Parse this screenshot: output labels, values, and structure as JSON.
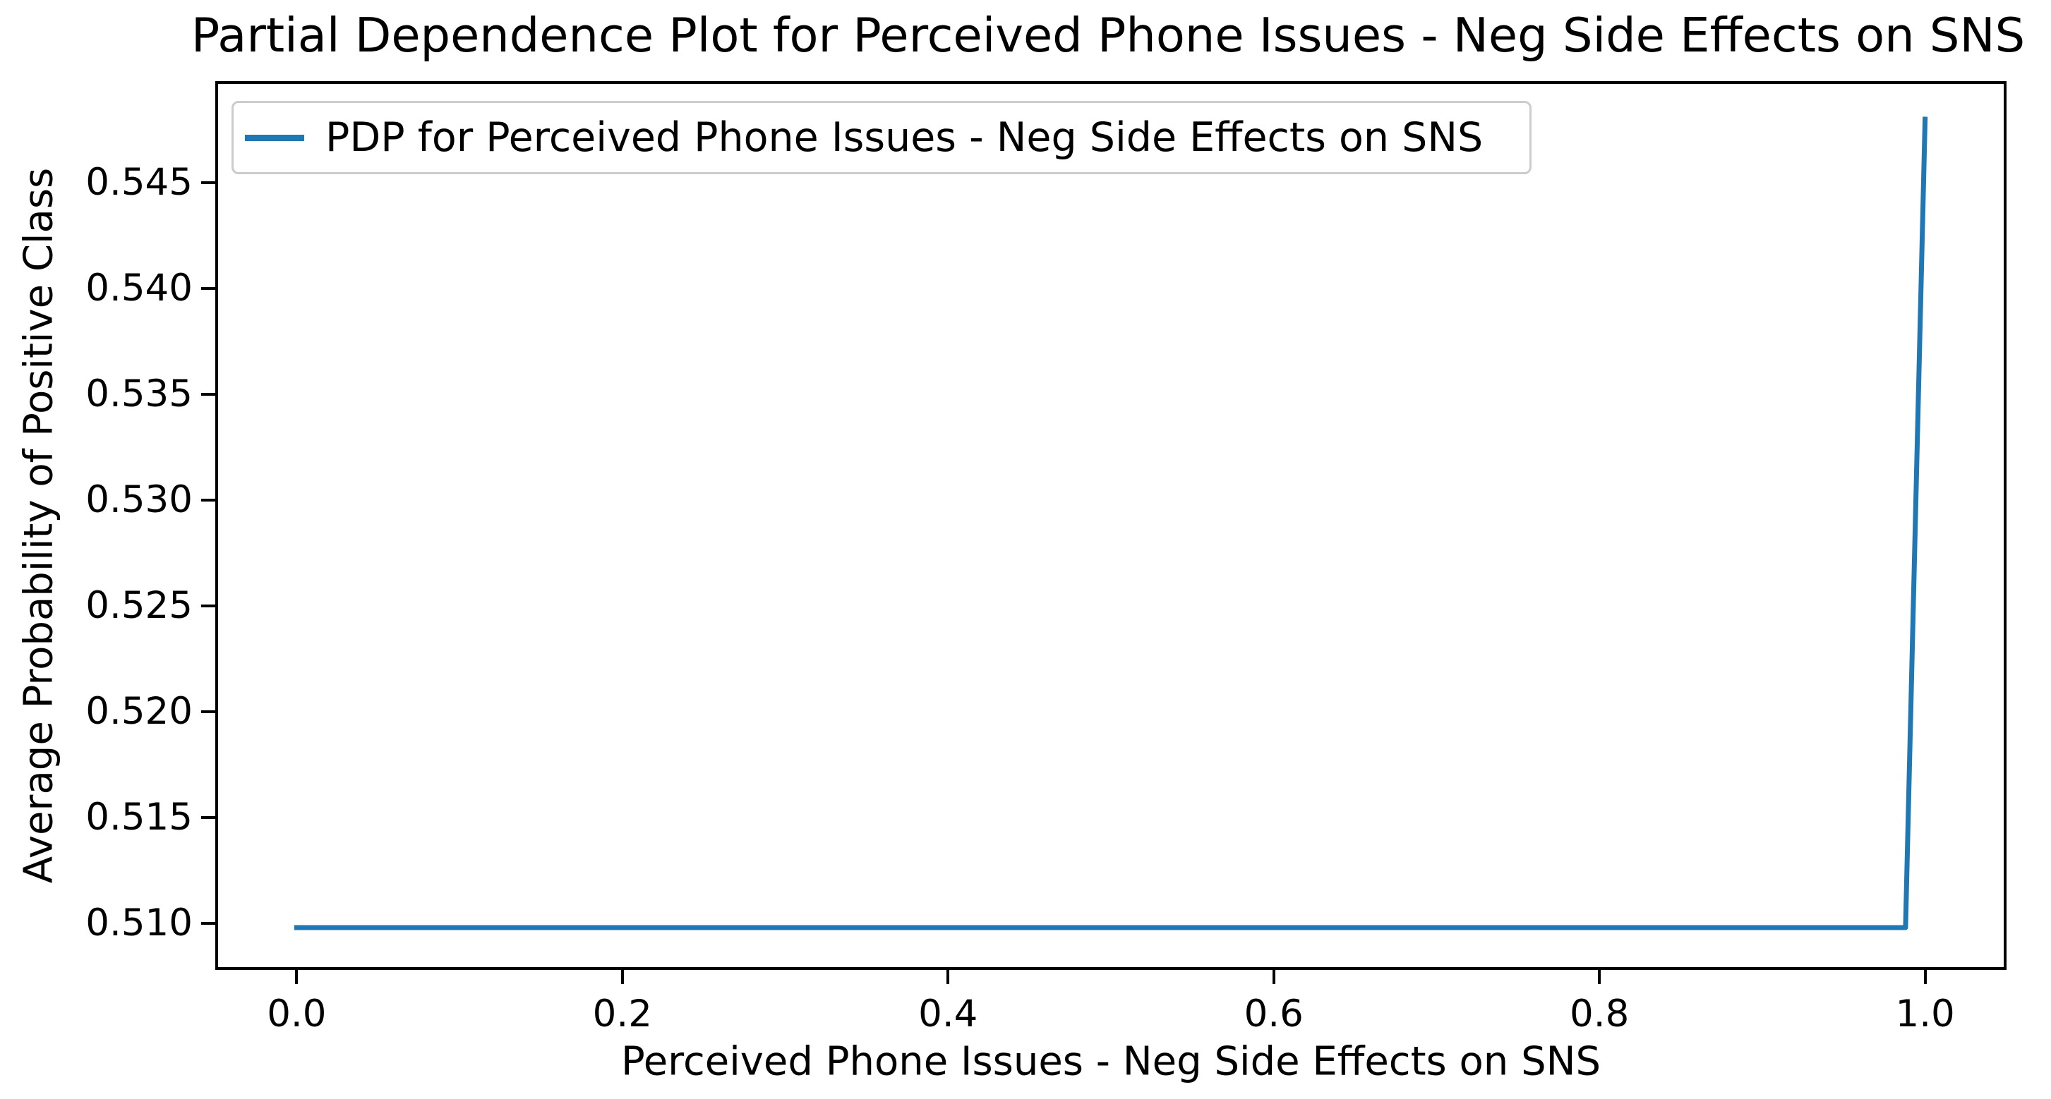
{
  "chart_data": {
    "type": "line",
    "title": "Partial Dependence Plot for Perceived Phone Issues - Neg Side Effects on SNS",
    "xlabel": "Perceived Phone Issues - Neg Side Effects on SNS",
    "ylabel": "Average Probability of Positive Class",
    "legend": {
      "position": "upper left",
      "entries": [
        {
          "label": "PDP for Perceived Phone Issues - Neg Side Effects on SNS",
          "color": "#1f77b4"
        }
      ]
    },
    "series": [
      {
        "name": "PDP for Perceived Phone Issues - Neg Side Effects on SNS",
        "color": "#1f77b4",
        "points": [
          [
            0.0,
            0.5098
          ],
          [
            0.988,
            0.5098
          ],
          [
            1.0,
            0.548
          ]
        ]
      }
    ],
    "xlim": [
      -0.05,
      1.05
    ],
    "ylim": [
      0.5078,
      0.5498
    ],
    "x_ticks": {
      "values": [
        0.0,
        0.2,
        0.4,
        0.6,
        0.8,
        1.0
      ],
      "labels": [
        "0.0",
        "0.2",
        "0.4",
        "0.6",
        "0.8",
        "1.0"
      ]
    },
    "y_ticks": {
      "values": [
        0.51,
        0.515,
        0.52,
        0.525,
        0.53,
        0.535,
        0.54,
        0.545
      ],
      "labels": [
        "0.510",
        "0.515",
        "0.520",
        "0.525",
        "0.530",
        "0.535",
        "0.540",
        "0.545"
      ]
    },
    "grid": false,
    "colors": {
      "line": "#1f77b4",
      "axis": "#000000",
      "background": "#ffffff",
      "legend_border": "#cccccc",
      "text": "#000000"
    }
  }
}
